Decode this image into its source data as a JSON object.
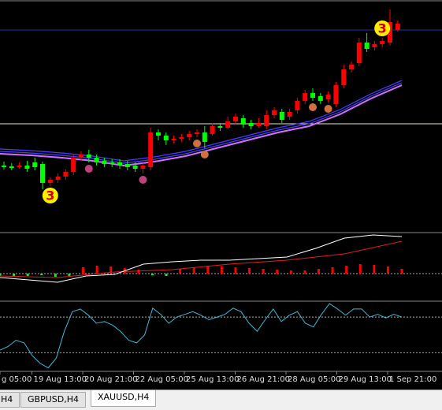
{
  "chart_data": {
    "type": "candlestick",
    "up_color": "#ff0000",
    "down_color": "#00ff00",
    "ylim": [
      0,
      300
    ],
    "open": [
      90,
      89,
      88,
      90,
      94,
      92,
      68,
      72,
      76,
      82,
      100,
      104,
      100,
      96,
      94,
      94,
      92,
      90,
      86,
      88,
      132,
      128,
      122,
      124,
      126,
      130,
      132,
      130,
      140,
      138,
      146,
      150,
      144,
      140,
      140,
      154,
      158,
      152,
      160,
      172,
      182,
      178,
      174,
      168,
      192,
      212,
      220,
      246,
      240,
      244,
      246,
      262
    ],
    "high": [
      95,
      93,
      94,
      96,
      100,
      95,
      75,
      80,
      85,
      104,
      108,
      110,
      104,
      100,
      98,
      98,
      96,
      94,
      94,
      138,
      136,
      132,
      128,
      130,
      134,
      136,
      140,
      144,
      144,
      152,
      156,
      154,
      148,
      150,
      160,
      164,
      162,
      162,
      176,
      186,
      188,
      182,
      184,
      196,
      218,
      222,
      252,
      258,
      248,
      252,
      288,
      274
    ],
    "low": [
      85,
      84,
      86,
      82,
      84,
      60,
      64,
      68,
      72,
      78,
      96,
      94,
      90,
      88,
      88,
      86,
      84,
      82,
      80,
      84,
      122,
      116,
      118,
      120,
      122,
      126,
      112,
      128,
      134,
      136,
      142,
      138,
      136,
      138,
      136,
      150,
      144,
      148,
      156,
      168,
      172,
      168,
      170,
      164,
      188,
      208,
      216,
      234,
      236,
      240,
      242,
      260
    ],
    "close": [
      88,
      87,
      90,
      86,
      88,
      68,
      72,
      76,
      82,
      100,
      104,
      100,
      94,
      92,
      92,
      90,
      88,
      86,
      90,
      132,
      128,
      122,
      124,
      126,
      130,
      132,
      120,
      140,
      138,
      146,
      152,
      142,
      140,
      144,
      154,
      160,
      148,
      158,
      172,
      182,
      176,
      172,
      180,
      192,
      212,
      218,
      246,
      238,
      244,
      248,
      272,
      270
    ],
    "ma": [
      105,
      103,
      100,
      96,
      90,
      95,
      102,
      112,
      122,
      132,
      140,
      155,
      175,
      192
    ],
    "ma_color": "#4b3cff",
    "price_levels": [
      {
        "value": 262,
        "color": "#2a2aa8"
      },
      {
        "value": 143,
        "color": "#e8e8c8"
      }
    ],
    "markers": [
      "3",
      "3"
    ],
    "oscillator": {
      "ylim": [
        -33,
        50
      ],
      "levels": [
        0
      ],
      "histogram": [
        -3,
        -4,
        -3,
        -2,
        -4,
        -3,
        8,
        10,
        9,
        7,
        5,
        -2,
        -3,
        6,
        8,
        10,
        9,
        8,
        7,
        6,
        5,
        4,
        4,
        6,
        8,
        10,
        12,
        11,
        9,
        6
      ],
      "fast": [
        -5,
        -8,
        -11,
        -3,
        -1,
        12,
        15,
        17,
        17,
        19,
        21,
        32,
        45,
        49,
        47
      ],
      "slow": [
        -3,
        -5,
        2,
        5,
        12,
        17,
        25,
        41
      ]
    },
    "rsi": {
      "ylim": [
        10,
        86
      ],
      "levels": [
        30,
        70
      ],
      "color": "#3fb8d8",
      "values": [
        33,
        37,
        44,
        41,
        27,
        18,
        13,
        24,
        54,
        76,
        79,
        72,
        63,
        65,
        61,
        54,
        44,
        41,
        50,
        80,
        73,
        63,
        70,
        73,
        76,
        72,
        67,
        70,
        73,
        80,
        76,
        63,
        54,
        67,
        79,
        65,
        72,
        76,
        63,
        59,
        73,
        85,
        79,
        72,
        79,
        79,
        70,
        73,
        69,
        73,
        70
      ]
    },
    "x_labels": [
      "g 05:00",
      "19 Aug 13:00",
      "20 Aug 21:00",
      "22 Aug 05:00",
      "25 Aug 13:00",
      "26 Aug 21:00",
      "28 Aug 05:00",
      "29 Aug 13:00",
      "1 Sep 21:00"
    ]
  },
  "tabs": [
    "H4",
    "GBPUSD,H4",
    "XAUUSD,H4"
  ]
}
